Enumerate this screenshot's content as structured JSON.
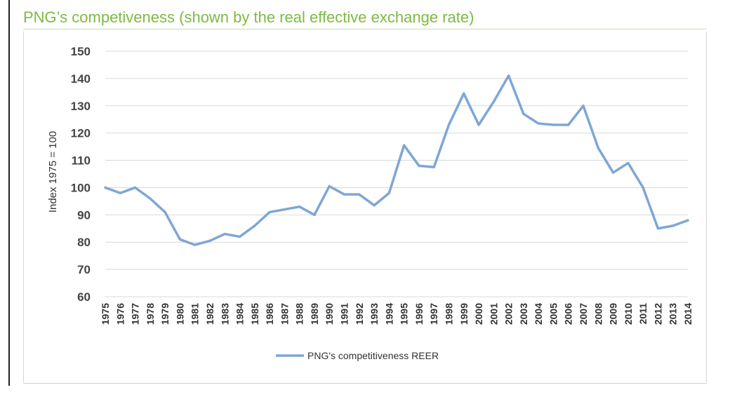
{
  "page_title": "PNG’s competiveness (shown by the real effective exchange rate)",
  "chart_data": {
    "type": "line",
    "title": "",
    "xlabel": "",
    "ylabel": "Index 1975 = 100",
    "ylim": [
      60,
      150
    ],
    "yticks": [
      60,
      70,
      80,
      90,
      100,
      110,
      120,
      130,
      140,
      150
    ],
    "grid": true,
    "legend_position": "bottom",
    "x": [
      "1975",
      "1976",
      "1977",
      "1978",
      "1979",
      "1980",
      "1981",
      "1982",
      "1983",
      "1984",
      "1985",
      "1986",
      "1987",
      "1988",
      "1989",
      "1990",
      "1991",
      "1992",
      "1993",
      "1994",
      "1995",
      "1996",
      "1997",
      "1998",
      "1999",
      "2000",
      "2001",
      "2002",
      "2003",
      "2004",
      "2005",
      "2006",
      "2007",
      "2008",
      "2009",
      "2010",
      "2011",
      "2012",
      "2013",
      "2014"
    ],
    "series": [
      {
        "name": "PNG's competitiveness REER",
        "color": "#7ea6d7",
        "values": [
          100,
          98,
          100,
          96,
          91,
          81,
          79,
          80.5,
          83,
          82,
          86,
          91,
          92,
          93,
          90,
          100.5,
          97.5,
          97.5,
          93.5,
          98,
          115.5,
          108,
          107.5,
          123,
          134.5,
          123,
          131.5,
          141,
          127,
          123.5,
          123,
          123,
          130,
          114.5,
          105.5,
          109,
          100,
          85,
          86,
          88
        ]
      }
    ]
  }
}
